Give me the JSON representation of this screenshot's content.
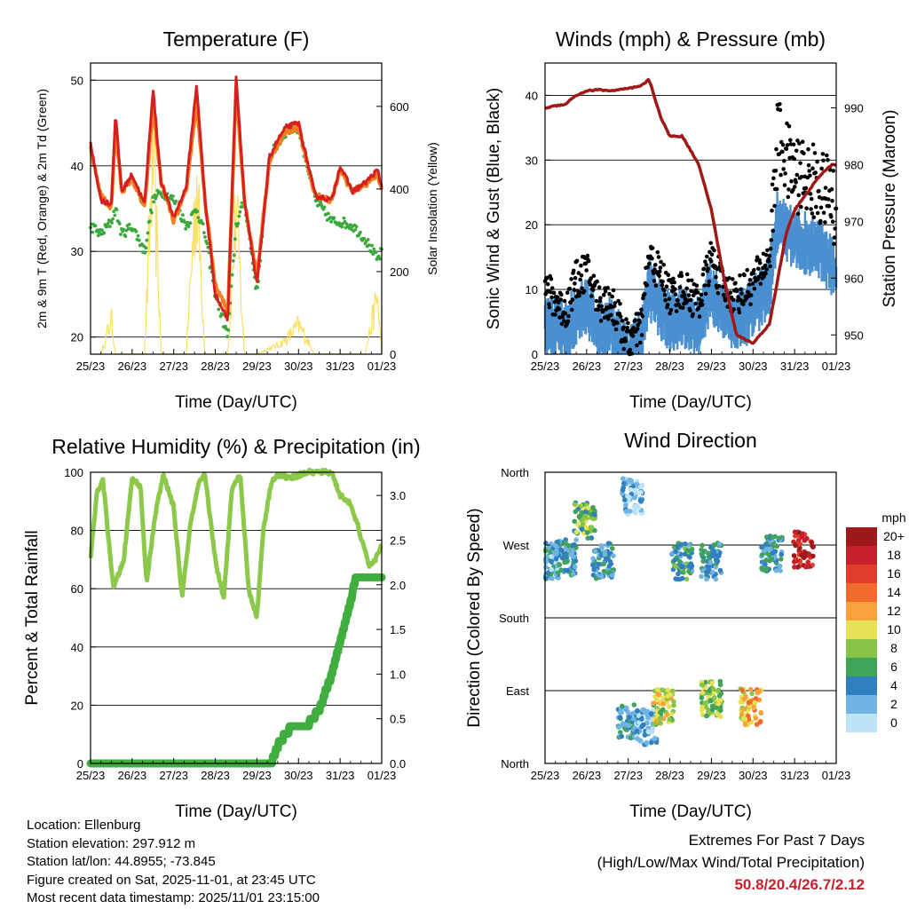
{
  "colors": {
    "t2m": "#d42020",
    "t9m": "#f27f1f",
    "td": "#3aa83a",
    "solar": "#f8e06a",
    "gust": "#000000",
    "sonic": "#4a90d0",
    "pressure": "#a01818",
    "rh": "#8cc84a",
    "precip": "#3fae3f",
    "extremes": "#c8202a"
  },
  "time_ticks": [
    "25/23",
    "26/23",
    "27/23",
    "28/23",
    "29/23",
    "30/23",
    "31/23",
    "01/23"
  ],
  "xlabel": "Time (Day/UTC)",
  "chart_data": [
    {
      "type": "line",
      "title": "Temperature (F)",
      "xlabel": "Time (Day/UTC)",
      "ylabel": "2m & 9m T (Red, Orange) & 2m Td (Green)",
      "y2label": "Solar Insolation (Yellow)",
      "ylim": [
        18,
        52
      ],
      "yticks": [
        20,
        30,
        40,
        50
      ],
      "y2lim": [
        0,
        705
      ],
      "y2ticks": [
        0,
        200,
        400,
        600
      ],
      "days": [
        0,
        0.25,
        0.5,
        0.6,
        0.75,
        1.0,
        1.3,
        1.5,
        1.7,
        2.0,
        2.3,
        2.55,
        2.75,
        3.0,
        3.3,
        3.5,
        3.7,
        4.0,
        4.3,
        4.5,
        4.7,
        5.0,
        5.4,
        5.8,
        6.0,
        6.3,
        6.6,
        6.9,
        7.0
      ],
      "series": [
        {
          "name": "2m T",
          "values": [
            42.5,
            36,
            35.5,
            46,
            37,
            39,
            35.5,
            49,
            38,
            34,
            37.5,
            49.5,
            36,
            25,
            22,
            50.5,
            36,
            26,
            41,
            43,
            44.5,
            45,
            36.5,
            36,
            40,
            37,
            38,
            39.5,
            37.5
          ]
        },
        {
          "name": "9m T",
          "values": [
            42,
            36.5,
            35,
            44.5,
            37,
            38.5,
            35,
            47,
            38,
            33.5,
            37,
            47.5,
            36,
            26,
            23,
            49,
            36,
            27,
            40.5,
            42.5,
            44,
            44.5,
            36.5,
            36,
            39.5,
            37,
            37.8,
            39,
            37.3
          ]
        },
        {
          "name": "2m Td",
          "values": [
            33,
            32,
            33.5,
            35,
            32,
            33,
            30,
            36,
            37,
            36,
            33,
            35,
            32,
            25,
            20,
            33,
            36,
            25,
            41,
            42.5,
            44,
            44.5,
            36,
            33.5,
            33.5,
            33,
            31.5,
            29,
            30
          ]
        },
        {
          "name": "Solar Insolation",
          "values": [
            0,
            0,
            120,
            0,
            0,
            0,
            0,
            700,
            0,
            0,
            0,
            600,
            0,
            0,
            0,
            500,
            0,
            0,
            20,
            30,
            50,
            100,
            0,
            0,
            0,
            0,
            0,
            200,
            0
          ]
        }
      ]
    },
    {
      "type": "line",
      "title": "Winds (mph) & Pressure (mb)",
      "xlabel": "Time (Day/UTC)",
      "ylabel": "Sonic Wind & Gust (Blue, Black)",
      "y2label": "Station Pressure (Maroon)",
      "ylim": [
        0,
        45
      ],
      "yticks": [
        0,
        10,
        20,
        30,
        40
      ],
      "y2lim": [
        946.6,
        997.9
      ],
      "y2ticks": [
        950,
        960,
        970,
        980,
        990
      ],
      "days": [
        0,
        0.5,
        0.7,
        1.0,
        1.3,
        1.6,
        2.0,
        2.3,
        2.5,
        2.8,
        3.0,
        3.3,
        3.7,
        4.0,
        4.3,
        4.6,
        5.0,
        5.4,
        5.6,
        5.8,
        6.0,
        6.3,
        6.6,
        6.9,
        7.0
      ],
      "series": [
        {
          "name": "Gust",
          "values": [
            10,
            6.5,
            11,
            13,
            8,
            8,
            2,
            4,
            15,
            12,
            9,
            10,
            8,
            15,
            10,
            9,
            11,
            15,
            34,
            30,
            28,
            27,
            26,
            24,
            20
          ]
        },
        {
          "name": "Sonic Wind",
          "values": [
            6,
            4.5,
            7,
            8,
            5,
            5,
            1,
            2.5,
            11,
            8,
            6,
            7,
            5,
            11,
            7,
            6,
            8,
            12,
            22,
            20,
            19,
            18,
            17,
            15,
            13
          ]
        },
        {
          "name": "Station Pressure",
          "values": [
            990,
            990.7,
            992,
            993,
            993.2,
            993,
            993.4,
            993.8,
            995,
            988,
            985,
            985,
            980,
            972,
            960,
            950,
            948.5,
            952,
            960,
            968,
            972,
            975,
            978,
            980,
            980
          ]
        }
      ]
    },
    {
      "type": "line",
      "title": "Relative Humidity (%) & Precipitation (in)",
      "xlabel": "Time (Day/UTC)",
      "ylabel": "Percent & Total Rainfall",
      "ylim": [
        0,
        100
      ],
      "yticks": [
        0,
        20,
        40,
        60,
        80,
        100
      ],
      "y2lim": [
        0,
        3.26
      ],
      "y2ticks": [
        "0.0",
        "0.5",
        "1.0",
        "1.5",
        "2.0",
        "2.5",
        "3.0"
      ],
      "days": [
        0,
        0.15,
        0.3,
        0.55,
        0.8,
        1.0,
        1.2,
        1.35,
        1.55,
        1.75,
        2.0,
        2.2,
        2.4,
        2.6,
        2.75,
        3.0,
        3.2,
        3.4,
        3.6,
        3.8,
        4.0,
        4.15,
        4.35,
        4.5,
        4.8,
        5.2,
        5.5,
        5.8,
        6.0,
        6.2,
        6.4,
        6.55,
        6.7,
        6.85,
        7.0
      ],
      "series": [
        {
          "name": "Relative Humidity",
          "values": [
            70,
            93,
            97,
            60,
            70,
            98,
            95,
            62,
            85,
            99,
            88,
            57,
            82,
            96,
            99,
            70,
            56,
            95,
            99,
            60,
            50,
            80,
            97,
            99,
            98,
            100,
            100,
            100,
            92,
            90,
            83,
            75,
            68,
            70,
            75
          ]
        },
        {
          "name": "Total Precipitation",
          "values": [
            0,
            0,
            0,
            0,
            0,
            0,
            0,
            0,
            0,
            0,
            0,
            0,
            0,
            0,
            0,
            0,
            0,
            0,
            0,
            0,
            0,
            0,
            0,
            0.2,
            0.4,
            0.42,
            0.6,
            1.0,
            1.35,
            1.7,
            2.12,
            2.12,
            2.12,
            2.12,
            2.12
          ]
        }
      ]
    },
    {
      "type": "scatter",
      "title": "Wind Direction",
      "xlabel": "Time (Day/UTC)",
      "ylabel": "Direction (Colored By Speed)",
      "ylim": [
        0,
        360
      ],
      "ytick_labels": [
        "North",
        "East",
        "South",
        "West",
        "North"
      ],
      "yticks": [
        0,
        90,
        180,
        270,
        360
      ],
      "colorbar_title": "mph",
      "colorbar_labels": [
        "20+",
        "18",
        "16",
        "14",
        "12",
        "10",
        "8",
        "6",
        "4",
        "2",
        "0"
      ],
      "colorbar_colors": [
        "#9b1b1b",
        "#c8202a",
        "#e23c2a",
        "#f26a2d",
        "#f8a23d",
        "#e6e157",
        "#86c548",
        "#3fa35a",
        "#2f7fc1",
        "#6fb4e2",
        "#bde3f7"
      ],
      "clusters": [
        {
          "day": 0.1,
          "dir": 250,
          "speed": 4
        },
        {
          "day": 0.5,
          "dir": 255,
          "speed": 5
        },
        {
          "day": 0.95,
          "dir": 300,
          "speed": 8
        },
        {
          "day": 1.4,
          "dir": 250,
          "speed": 5
        },
        {
          "day": 2.0,
          "dir": 50,
          "speed": 5
        },
        {
          "day": 2.1,
          "dir": 330,
          "speed": 2
        },
        {
          "day": 2.45,
          "dir": 45,
          "speed": 3
        },
        {
          "day": 2.85,
          "dir": 70,
          "speed": 10
        },
        {
          "day": 3.3,
          "dir": 250,
          "speed": 6
        },
        {
          "day": 4.0,
          "dir": 80,
          "speed": 9
        },
        {
          "day": 4.0,
          "dir": 250,
          "speed": 5
        },
        {
          "day": 4.95,
          "dir": 70,
          "speed": 12
        },
        {
          "day": 5.45,
          "dir": 260,
          "speed": 5
        },
        {
          "day": 6.2,
          "dir": 265,
          "speed": 19
        }
      ]
    }
  ],
  "info": {
    "location": "Location: Ellenburg",
    "elevation": "Station elevation: 297.912 m",
    "latlon": "Station lat/lon: 44.8955; -73.845",
    "created": "Figure created on Sat, 2025-11-01, at 23:45 UTC",
    "recent": "Most recent data timestamp: 2025/11/01 23:15:00"
  },
  "extremes": {
    "title": "Extremes For Past 7 Days",
    "subtitle": "(High/Low/Max Wind/Total Precipitation)",
    "values": "50.8/20.4/26.7/2.12"
  }
}
